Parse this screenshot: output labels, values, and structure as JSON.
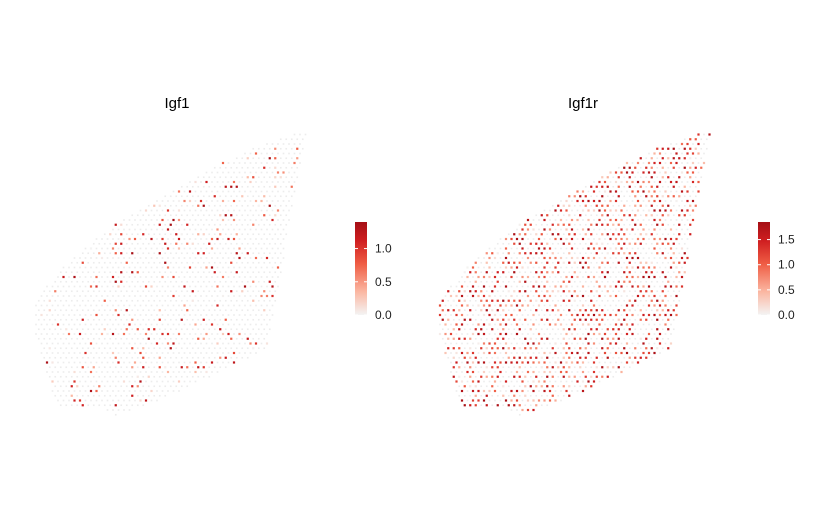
{
  "chart_data": [
    {
      "type": "scatter",
      "title": "Igf1",
      "legend": {
        "position": "right",
        "type": "colorbar",
        "range": [
          0,
          1.4
        ],
        "ticks": [
          0.0,
          0.5,
          1.0
        ],
        "tick_labels": [
          "0.0",
          "0.5",
          "1.0"
        ],
        "colors": [
          "#f4f4f4",
          "#a50f15"
        ]
      },
      "grid": false,
      "axes_visible": false,
      "value_profile": {
        "sparsity": 0.84,
        "max": 1.4
      }
    },
    {
      "type": "scatter",
      "title": "Igf1r",
      "legend": {
        "position": "right",
        "type": "colorbar",
        "range": [
          0,
          1.85
        ],
        "ticks": [
          0.0,
          0.5,
          1.0,
          1.5
        ],
        "tick_labels": [
          "0.0",
          "0.5",
          "1.0",
          "1.5"
        ],
        "colors": [
          "#f4f4f4",
          "#a50f15"
        ]
      },
      "grid": false,
      "axes_visible": false,
      "value_profile": {
        "sparsity": 0.45,
        "max": 1.85
      }
    }
  ]
}
